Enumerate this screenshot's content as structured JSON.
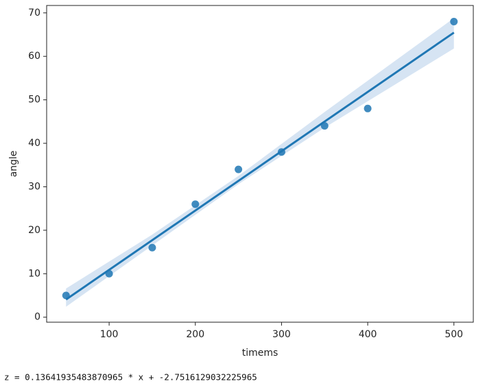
{
  "chart_data": {
    "type": "regplot",
    "x_label": "timems",
    "y_label": "angle",
    "x": [
      50,
      100,
      150,
      200,
      250,
      300,
      350,
      400,
      500
    ],
    "values": [
      5,
      10,
      16,
      26,
      34,
      38,
      44,
      48,
      68
    ],
    "color": "#1f77b4",
    "fit": {
      "x": [
        50,
        500
      ],
      "values": [
        4.07,
        65.46
      ]
    },
    "band": {
      "x": [
        50,
        150,
        250,
        350,
        500
      ],
      "lower": [
        2.4,
        16.5,
        30.6,
        43.6,
        61.8
      ],
      "upper": [
        6.6,
        19.0,
        32.5,
        47.2,
        68.8
      ]
    },
    "band_color": "#aec9e8",
    "xlim": [
      27.5,
      522.5
    ],
    "xticks": [
      100,
      200,
      300,
      400,
      500
    ],
    "ylim": [
      -1.15,
      71.7
    ],
    "yticks": [
      0,
      10,
      20,
      30,
      40,
      50,
      60,
      70
    ]
  },
  "console": {
    "text": "z = 0.13641935483870965 * x + -2.7516129032225965"
  }
}
